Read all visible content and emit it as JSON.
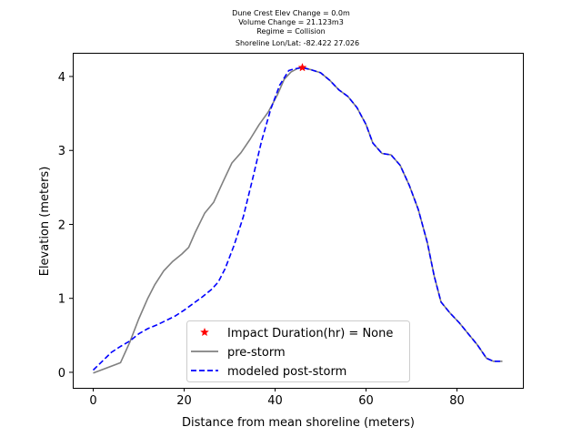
{
  "chart_data": {
    "type": "line",
    "title_lines": [
      "Dune Crest Elev Change = 0.0m",
      "Volume Change = 21.123m3",
      "Regime = Collision",
      "Shoreline Lon/Lat: -82.422 27.026"
    ],
    "xlabel": "Distance from mean shoreline (meters)",
    "ylabel": "Elevation (meters)",
    "xlim": [
      -4.5,
      94.5
    ],
    "ylim": [
      -0.21,
      4.32
    ],
    "x_ticks": [
      0,
      20,
      40,
      60,
      80
    ],
    "y_ticks": [
      0,
      1,
      2,
      3,
      4
    ],
    "legend_position": "lower center",
    "series": [
      {
        "name": "pre-storm",
        "color": "#808080",
        "style": "solid",
        "points": [
          [
            0,
            -0.01
          ],
          [
            6,
            0.13
          ],
          [
            8,
            0.4
          ],
          [
            10,
            0.72
          ],
          [
            12,
            1.0
          ],
          [
            13.5,
            1.18
          ],
          [
            15.5,
            1.37
          ],
          [
            17.5,
            1.5
          ],
          [
            19.5,
            1.6
          ],
          [
            21,
            1.69
          ],
          [
            22.5,
            1.9
          ],
          [
            24.5,
            2.15
          ],
          [
            26.5,
            2.3
          ],
          [
            28.5,
            2.57
          ],
          [
            30.5,
            2.83
          ],
          [
            32.5,
            2.97
          ],
          [
            34.5,
            3.15
          ],
          [
            36.5,
            3.35
          ],
          [
            38.5,
            3.52
          ],
          [
            40.5,
            3.75
          ],
          [
            42,
            3.96
          ],
          [
            43.5,
            4.06
          ],
          [
            45,
            4.11
          ],
          [
            46,
            4.12
          ],
          [
            48,
            4.09
          ],
          [
            50,
            4.05
          ],
          [
            52,
            3.95
          ],
          [
            54,
            3.82
          ],
          [
            56,
            3.73
          ],
          [
            58,
            3.58
          ],
          [
            60,
            3.35
          ],
          [
            61.5,
            3.1
          ],
          [
            63.5,
            2.96
          ],
          [
            65.5,
            2.94
          ],
          [
            67.5,
            2.8
          ],
          [
            69.5,
            2.53
          ],
          [
            71.5,
            2.2
          ],
          [
            73.5,
            1.75
          ],
          [
            75,
            1.3
          ],
          [
            76.5,
            0.95
          ],
          [
            78.5,
            0.8
          ],
          [
            80.5,
            0.67
          ],
          [
            82.5,
            0.52
          ],
          [
            84.5,
            0.37
          ],
          [
            86.5,
            0.19
          ],
          [
            88,
            0.15
          ],
          [
            90,
            0.15
          ]
        ]
      },
      {
        "name": "modeled post-storm",
        "color": "#0000ff",
        "style": "dashed",
        "points": [
          [
            0,
            0.03
          ],
          [
            2,
            0.15
          ],
          [
            4,
            0.27
          ],
          [
            6,
            0.35
          ],
          [
            8,
            0.42
          ],
          [
            10,
            0.52
          ],
          [
            12,
            0.59
          ],
          [
            14,
            0.64
          ],
          [
            16,
            0.7
          ],
          [
            18,
            0.76
          ],
          [
            20,
            0.84
          ],
          [
            22,
            0.93
          ],
          [
            24,
            1.02
          ],
          [
            26,
            1.12
          ],
          [
            27.5,
            1.22
          ],
          [
            29,
            1.4
          ],
          [
            31,
            1.72
          ],
          [
            33,
            2.1
          ],
          [
            35,
            2.6
          ],
          [
            37,
            3.12
          ],
          [
            39,
            3.55
          ],
          [
            41,
            3.88
          ],
          [
            43,
            4.08
          ],
          [
            44,
            4.1
          ],
          [
            46,
            4.12
          ],
          [
            48,
            4.09
          ],
          [
            50,
            4.05
          ],
          [
            52,
            3.95
          ],
          [
            54,
            3.82
          ],
          [
            56,
            3.73
          ],
          [
            58,
            3.58
          ],
          [
            60,
            3.35
          ],
          [
            61.5,
            3.1
          ],
          [
            63.5,
            2.96
          ],
          [
            65.5,
            2.94
          ],
          [
            67.5,
            2.8
          ],
          [
            69.5,
            2.53
          ],
          [
            71.5,
            2.2
          ],
          [
            73.5,
            1.75
          ],
          [
            75,
            1.3
          ],
          [
            76.5,
            0.95
          ],
          [
            78.5,
            0.8
          ],
          [
            80.5,
            0.67
          ],
          [
            82.5,
            0.52
          ],
          [
            84.5,
            0.37
          ],
          [
            86.5,
            0.19
          ],
          [
            88,
            0.15
          ],
          [
            90,
            0.15
          ]
        ]
      }
    ],
    "markers": [
      {
        "name": "Impact Duration(hr) = None",
        "symbol": "star",
        "color": "#ff0000",
        "x": 46,
        "y": 4.12
      }
    ]
  }
}
